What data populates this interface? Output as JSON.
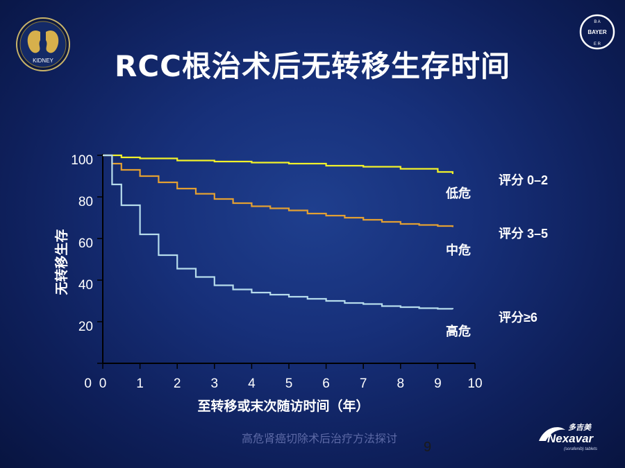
{
  "header": {
    "title": "RCC根治术后无转移生存时间",
    "kidney_logo_text": "KIDNEY",
    "bayer_logo_text": "BAYER"
  },
  "colors": {
    "low_risk": "#f2f22a",
    "mid_risk": "#e3a032",
    "high_risk": "#b6dcec",
    "text": "#ffffff"
  },
  "chart_data": {
    "type": "line",
    "title": "",
    "xlabel": "至转移或末次随访时间（年）",
    "ylabel": "无转移生存",
    "xlim": [
      0,
      10
    ],
    "ylim": [
      0,
      100
    ],
    "x_ticks": [
      "0",
      "1",
      "2",
      "3",
      "4",
      "5",
      "6",
      "7",
      "8",
      "9",
      "10"
    ],
    "y_ticks": [
      "0",
      "20",
      "40",
      "60",
      "80",
      "100"
    ],
    "series": [
      {
        "name": "低危",
        "score_label": "评分 0–2",
        "color": "#f2f22a",
        "x": [
          0,
          0.5,
          1,
          2,
          3,
          4,
          5,
          6,
          7,
          8,
          9,
          9.4
        ],
        "y": [
          100,
          99,
          98.5,
          97.5,
          97,
          96.5,
          96,
          95,
          94.5,
          93.5,
          92,
          91
        ]
      },
      {
        "name": "中危",
        "score_label": "评分 3–5",
        "color": "#e3a032",
        "x": [
          0,
          0.25,
          0.5,
          1,
          1.5,
          2,
          2.5,
          3,
          3.5,
          4,
          4.5,
          5,
          5.5,
          6,
          6.5,
          7,
          7.5,
          8,
          8.5,
          9,
          9.4
        ],
        "y": [
          100,
          96,
          93,
          90,
          87,
          84,
          81.5,
          79,
          77,
          75.5,
          74.5,
          73.5,
          72,
          71,
          70,
          69,
          68,
          67,
          66.5,
          66,
          65.5
        ]
      },
      {
        "name": "高危",
        "score_label": "评分≥6",
        "color": "#b6dcec",
        "x": [
          0,
          0.25,
          0.5,
          1,
          1.5,
          2,
          2.5,
          3,
          3.5,
          4,
          4.5,
          5,
          5.5,
          6,
          6.5,
          7,
          7.5,
          8,
          8.5,
          9,
          9.4
        ],
        "y": [
          100,
          86,
          76,
          62,
          52,
          45.5,
          41.5,
          37.5,
          35.5,
          34,
          33,
          32,
          31,
          30,
          29,
          28.5,
          27.5,
          27,
          26.5,
          26.2,
          26
        ]
      }
    ]
  },
  "footer": {
    "note": "高危肾癌切除术后治疗方法探讨",
    "page_number": "9",
    "product_name": "Nexavar",
    "product_cn": "多吉美",
    "product_sub": "(sorafenib) tablets"
  }
}
